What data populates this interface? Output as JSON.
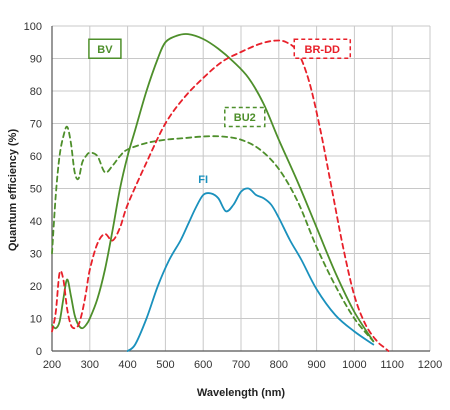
{
  "chart_data": {
    "type": "line",
    "xlabel": "Wavelength (nm)",
    "ylabel": "Quantum efficiency (%)",
    "xlim": [
      200,
      1200
    ],
    "ylim": [
      0,
      100
    ],
    "x_ticks": [
      200,
      300,
      400,
      500,
      600,
      700,
      800,
      900,
      1000,
      1100,
      1200
    ],
    "y_ticks": [
      0,
      10,
      20,
      30,
      40,
      50,
      60,
      70,
      80,
      90,
      100
    ],
    "grid": true,
    "series": [
      {
        "name": "BV",
        "color": "#4e8f2b",
        "style": "solid",
        "label_box": true,
        "x": [
          200,
          210,
          220,
          230,
          240,
          250,
          260,
          270,
          280,
          290,
          300,
          320,
          340,
          360,
          380,
          400,
          420,
          450,
          480,
          500,
          530,
          560,
          600,
          640,
          680,
          720,
          760,
          800,
          850,
          900,
          950,
          1000,
          1050
        ],
        "y": [
          8,
          7,
          9,
          16,
          22,
          17,
          11,
          8,
          7,
          8,
          10,
          16,
          25,
          37,
          50,
          60,
          68,
          80,
          90,
          95,
          97,
          97.5,
          96,
          93,
          89,
          84,
          76,
          65,
          52,
          38,
          24,
          12,
          3
        ]
      },
      {
        "name": "BU2",
        "color": "#4e8f2b",
        "style": "dashed",
        "label_box": true,
        "x": [
          200,
          210,
          220,
          230,
          240,
          250,
          260,
          270,
          280,
          290,
          300,
          320,
          340,
          360,
          380,
          400,
          450,
          500,
          550,
          600,
          650,
          700,
          750,
          800,
          850,
          900,
          950,
          1000,
          1050
        ],
        "y": [
          30,
          48,
          60,
          66,
          69,
          64,
          55,
          53,
          58,
          60,
          61,
          60,
          55,
          57,
          60,
          62,
          64,
          65,
          65.5,
          66,
          66,
          65,
          62,
          56,
          46,
          32,
          20,
          10,
          3
        ]
      },
      {
        "name": "BR-DD",
        "color": "#e8202a",
        "style": "dashed",
        "label_box": true,
        "x": [
          200,
          210,
          220,
          230,
          240,
          250,
          260,
          270,
          280,
          290,
          300,
          320,
          340,
          360,
          380,
          400,
          450,
          500,
          550,
          600,
          650,
          700,
          750,
          790,
          820,
          850,
          880,
          910,
          940,
          970,
          1000,
          1030,
          1060,
          1080,
          1090
        ],
        "y": [
          6,
          12,
          24,
          22,
          13,
          8,
          7,
          8,
          12,
          18,
          25,
          33,
          36,
          34,
          38,
          45,
          58,
          70,
          78,
          84,
          89,
          92,
          94.5,
          95.5,
          95,
          92,
          83,
          68,
          50,
          32,
          17,
          8,
          3,
          1,
          0
        ]
      },
      {
        "name": "FI",
        "color": "#1a91bd",
        "style": "solid",
        "label_box": false,
        "x": [
          400,
          420,
          450,
          480,
          510,
          540,
          560,
          580,
          600,
          620,
          640,
          660,
          680,
          700,
          720,
          740,
          760,
          780,
          800,
          830,
          860,
          900,
          950,
          1000,
          1050
        ],
        "y": [
          0,
          2,
          10,
          20,
          28,
          34,
          39,
          44,
          48,
          48.5,
          47,
          43,
          45,
          49,
          50,
          48,
          47,
          45,
          41,
          34,
          28,
          19,
          11,
          6,
          2
        ]
      }
    ]
  }
}
